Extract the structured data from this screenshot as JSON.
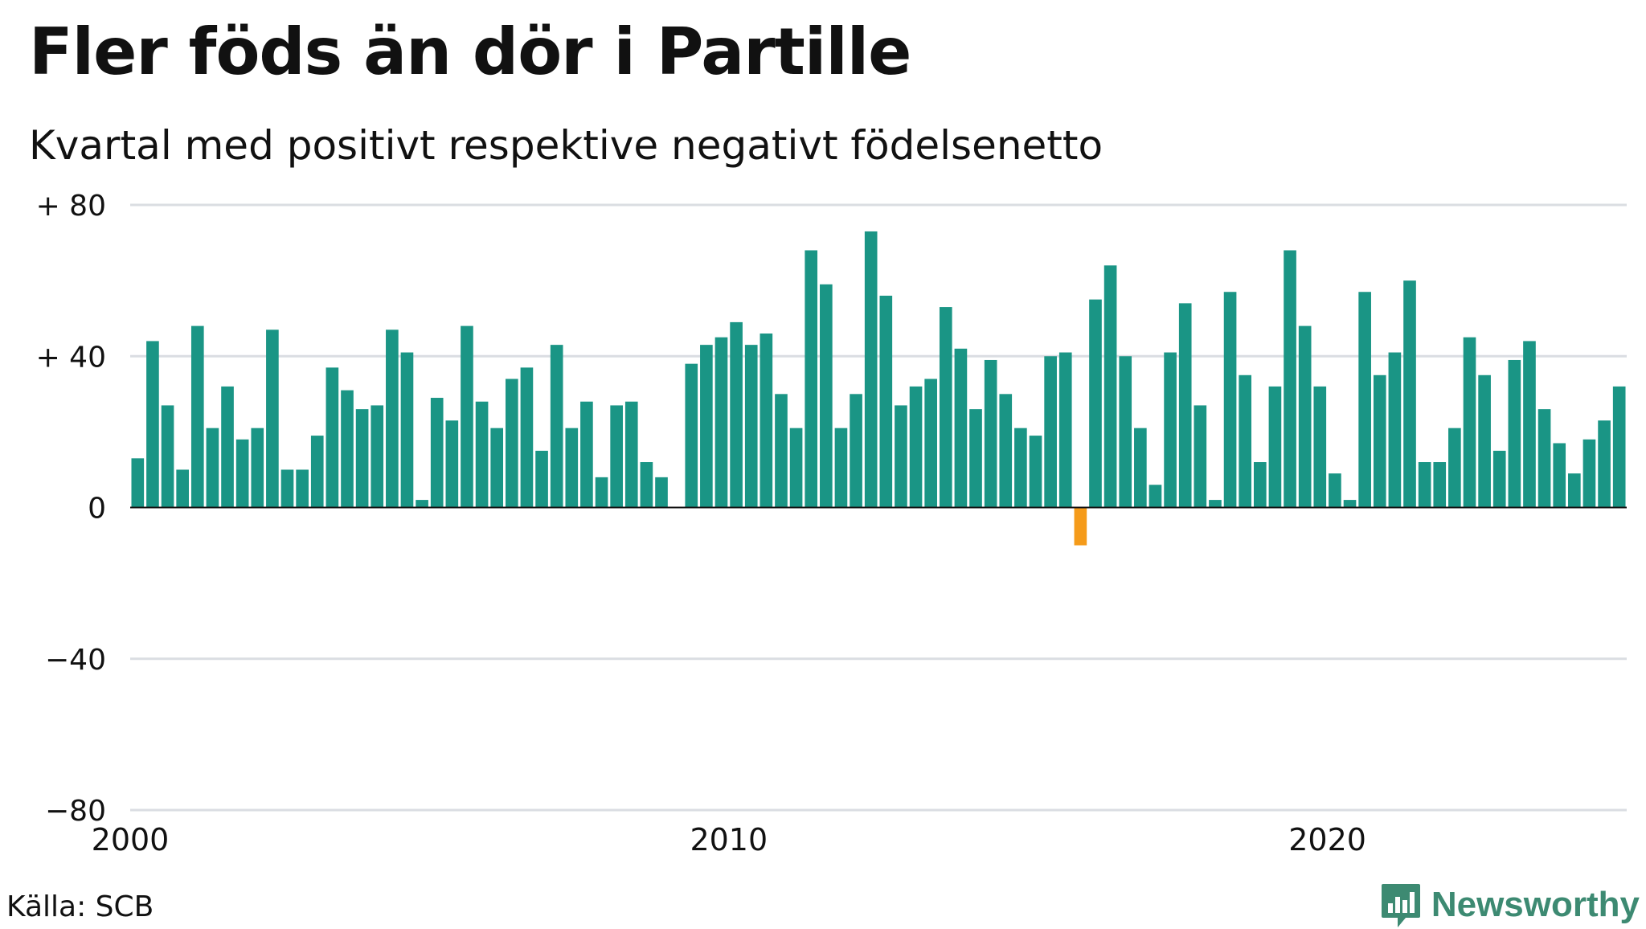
{
  "title": "Fler föds än dör i Partille",
  "subtitle": "Kvartal med positivt respektive negativt födelsenetto",
  "source": "Källa: SCB",
  "brand": {
    "name": "Newsworthy",
    "color": "#3d8a72",
    "icon": "newsworthy-logo-icon"
  },
  "colors": {
    "positive": "#1a9585",
    "negative": "#f59b1a",
    "grid": "#dadde2",
    "axis": "#111111"
  },
  "chart_data": {
    "type": "bar",
    "x_start": "2000 Q1",
    "x_ticks": [
      "2000",
      "2010",
      "2020"
    ],
    "y_ticks": [
      "+ 80",
      "+ 40",
      "0",
      "−40",
      "−80"
    ],
    "y_tick_values": [
      80,
      40,
      0,
      -40,
      -80
    ],
    "ylim": [
      -80,
      80
    ],
    "grid": true,
    "values": [
      13,
      44,
      27,
      10,
      48,
      21,
      32,
      18,
      21,
      47,
      10,
      10,
      19,
      37,
      31,
      26,
      27,
      47,
      41,
      2,
      29,
      23,
      48,
      28,
      21,
      34,
      37,
      15,
      43,
      21,
      28,
      8,
      27,
      28,
      12,
      8,
      null,
      38,
      43,
      45,
      49,
      43,
      46,
      30,
      21,
      68,
      59,
      21,
      30,
      73,
      56,
      27,
      32,
      34,
      53,
      42,
      26,
      39,
      30,
      21,
      19,
      40,
      41,
      -10,
      55,
      64,
      40,
      21,
      6,
      41,
      54,
      27,
      2,
      57,
      35,
      12,
      32,
      68,
      48,
      32,
      9,
      2,
      57,
      35,
      41,
      60,
      12,
      12,
      21,
      45,
      35,
      15,
      39,
      44,
      26,
      17,
      9,
      18,
      23,
      32
    ]
  }
}
